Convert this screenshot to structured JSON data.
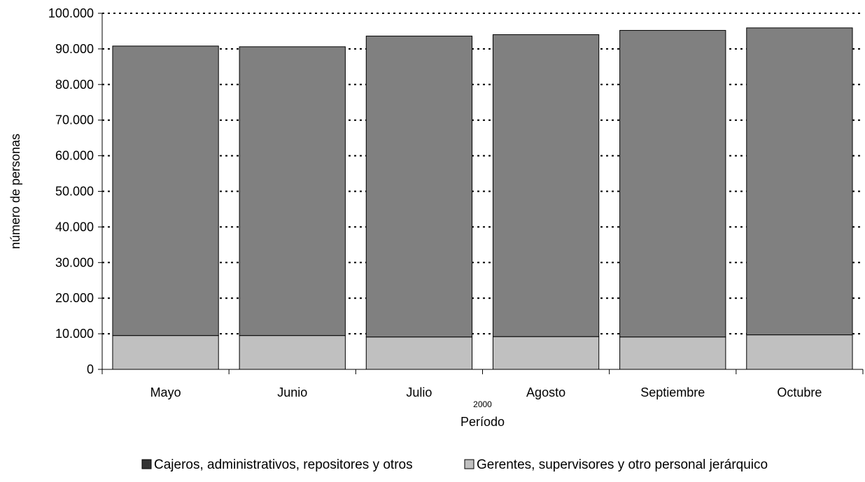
{
  "chart_data": {
    "type": "bar",
    "stacked": true,
    "categories": [
      "Mayo",
      "Junio",
      "Julio",
      "Agosto",
      "Septiembre",
      "Octubre"
    ],
    "year_label": "2000",
    "xlabel": "Período",
    "ylabel": "número de personas",
    "ylim": [
      0,
      100000
    ],
    "yticks": [
      0,
      10000,
      20000,
      30000,
      40000,
      50000,
      60000,
      70000,
      80000,
      90000,
      100000
    ],
    "ytick_labels": [
      "0",
      "10.000",
      "20.000",
      "30.000",
      "40.000",
      "50.000",
      "60.000",
      "70.000",
      "80.000",
      "90.000",
      "100.000"
    ],
    "grid": "horizontal-dotted",
    "legend_position": "bottom",
    "series": [
      {
        "name": "Gerentes, supervisores y otro personal jerárquico",
        "color": "#c0c0c0",
        "values": [
          9500,
          9500,
          9100,
          9200,
          9100,
          9700
        ]
      },
      {
        "name": "Cajeros, administrativos, repositores y otros",
        "color": "#808080",
        "legend_color": "#333333",
        "values": [
          81300,
          81100,
          84500,
          84800,
          86100,
          86200
        ]
      }
    ]
  }
}
